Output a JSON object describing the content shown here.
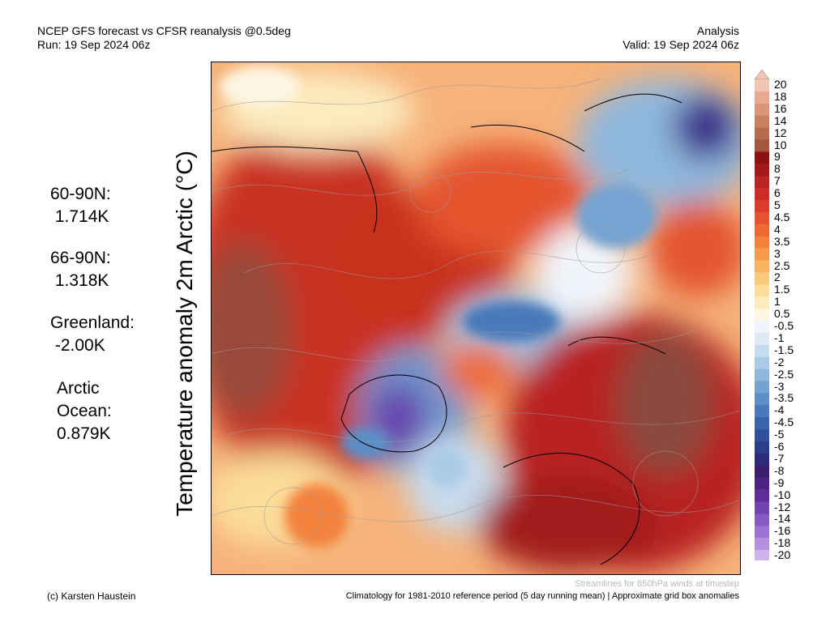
{
  "header": {
    "title_line1": "NCEP GFS forecast vs CFSR reanalysis @0.5deg",
    "title_line2": "Run: 19 Sep 2024 06z",
    "right_line1": "Analysis",
    "right_line2": "Valid: 19 Sep 2024 06z"
  },
  "y_label": "Temperature anomaly 2m Arctic (°C)",
  "stats": [
    {
      "label": "60-90N:",
      "value": " 1.714K"
    },
    {
      "label": "66-90N:",
      "value": " 1.318K"
    },
    {
      "label": "Greenland:",
      "value": " -2.00K"
    },
    {
      "label": "Arctic\nOcean:",
      "value": "0.879K"
    }
  ],
  "colorbar": {
    "labels": [
      "20",
      "18",
      "16",
      "14",
      "12",
      "10",
      "9",
      "8",
      "7",
      "6",
      "5",
      "4.5",
      "4",
      "3.5",
      "3",
      "2.5",
      "2",
      "1.5",
      "1",
      "0.5",
      "-0.5",
      "-1",
      "-1.5",
      "-2",
      "-2.5",
      "-3",
      "-3.5",
      "-4",
      "-4.5",
      "-5",
      "-6",
      "-7",
      "-8",
      "-9",
      "-10",
      "-12",
      "-14",
      "-16",
      "-18",
      "-20"
    ],
    "colors": [
      "#f3c6b4",
      "#e8ab92",
      "#d99575",
      "#c8805e",
      "#b66b4c",
      "#a3573d",
      "#8c1111",
      "#a11a1a",
      "#b82323",
      "#ca2e27",
      "#dc3c2c",
      "#e7532f",
      "#ee6a35",
      "#f3823d",
      "#f69a4b",
      "#f8b261",
      "#fac97c",
      "#fbdc99",
      "#fcebbe",
      "#fdf6e3",
      "#f1f5fb",
      "#dfe9f5",
      "#c7dbee",
      "#abcae6",
      "#8fb7dd",
      "#74a3d2",
      "#5c8fc7",
      "#4879ba",
      "#3964ab",
      "#2f4f9c",
      "#2b3d8b",
      "#2e2c7a",
      "#3a1f6e",
      "#4c2283",
      "#5e2f9b",
      "#7143b3",
      "#8659c6",
      "#9c72d4",
      "#b38fe0",
      "#cfb4ec"
    ]
  },
  "footer": {
    "credit": "(c) Karsten Haustein",
    "streamlines": "Streamlines for 850hPa winds at timestep",
    "climatology": "Climatology for 1981-2010 reference period (5 day running mean) | Approximate grid box anomalies"
  }
}
